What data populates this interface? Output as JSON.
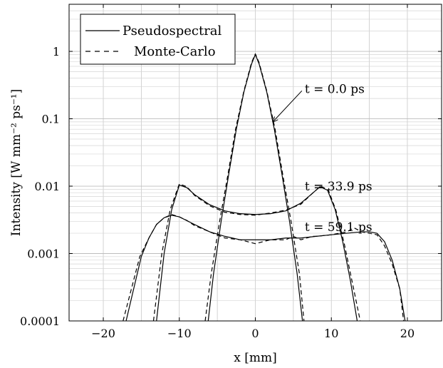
{
  "chart_data": {
    "type": "line",
    "title": "",
    "xlabel": "x [mm]",
    "ylabel": "Intensity [W mm⁻² ps⁻¹]",
    "xlim": [
      -24.5,
      24.5
    ],
    "ylim": [
      0.0001,
      5
    ],
    "yscale": "log",
    "grid": true,
    "legend_position": "top-left",
    "x_tick_labels": [
      "−20",
      "−10",
      "0",
      "10",
      "20"
    ],
    "x_ticks": [
      -20,
      -10,
      0,
      10,
      20
    ],
    "y_tick_labels": [
      "1",
      "0.1",
      "0.01",
      "0.001",
      "0.0001"
    ],
    "y_ticks": [
      1,
      0.1,
      0.01,
      0.001,
      0.0001
    ],
    "legend": [
      {
        "label": "Pseudospectral",
        "style": "solid"
      },
      {
        "label": "Monte-Carlo",
        "style": "dashed"
      }
    ],
    "annotations": [
      {
        "label": "t = 0.0 ps",
        "x": 6.5,
        "y": 0.28,
        "arrow_to": {
          "x": 2.3,
          "y": 0.09
        }
      },
      {
        "label": "t = 33.9 ps",
        "x": 6.5,
        "y": 0.01
      },
      {
        "label": "t = 59.1 ps",
        "x": 6.5,
        "y": 0.0025
      }
    ],
    "series": [
      {
        "group": "t = 0.0 ps",
        "method": "Pseudospectral",
        "style": "solid",
        "x": [
          -6.2,
          -5.5,
          -4.5,
          -3.5,
          -2.5,
          -1.5,
          -0.5,
          0,
          0.5,
          1.5,
          2.5,
          3.5,
          4.5,
          5.5,
          6.2
        ],
        "y": [
          0.0001,
          0.0005,
          0.003,
          0.015,
          0.07,
          0.25,
          0.65,
          0.9,
          0.65,
          0.25,
          0.07,
          0.015,
          0.003,
          0.0005,
          0.0001
        ]
      },
      {
        "group": "t = 0.0 ps",
        "method": "Monte-Carlo",
        "style": "dashed",
        "x": [
          -6.6,
          -5.8,
          -4.7,
          -3.6,
          -2.6,
          -1.5,
          -0.5,
          0,
          0.5,
          1.5,
          2.6,
          3.6,
          4.7,
          5.8,
          6.4
        ],
        "y": [
          0.0001,
          0.0005,
          0.003,
          0.015,
          0.07,
          0.26,
          0.68,
          0.92,
          0.68,
          0.26,
          0.07,
          0.015,
          0.003,
          0.0005,
          0.0001
        ]
      },
      {
        "group": "t = 33.9 ps",
        "method": "Pseudospectral",
        "style": "solid",
        "x": [
          -13.0,
          -12.0,
          -11.0,
          -10.0,
          -9.0,
          -8.0,
          -6.0,
          -4.0,
          -2.0,
          0,
          2.0,
          4.0,
          6.0,
          7.5,
          8.5,
          9.5,
          10.5,
          11.5,
          12.5,
          13.4
        ],
        "y": [
          0.0001,
          0.001,
          0.0045,
          0.0104,
          0.0095,
          0.0075,
          0.0053,
          0.0043,
          0.0039,
          0.0038,
          0.0039,
          0.0043,
          0.0056,
          0.0078,
          0.0098,
          0.0087,
          0.0045,
          0.0015,
          0.0004,
          0.0001
        ]
      },
      {
        "group": "t = 33.9 ps",
        "method": "Monte-Carlo",
        "style": "dashed",
        "x": [
          -13.4,
          -12.3,
          -11.2,
          -10.0,
          -9.0,
          -8.0,
          -6.0,
          -4.0,
          -2.0,
          0,
          2.0,
          4.0,
          6.0,
          7.5,
          8.6,
          9.6,
          10.6,
          11.7,
          12.7,
          13.8
        ],
        "y": [
          0.0001,
          0.001,
          0.0045,
          0.0108,
          0.0098,
          0.0073,
          0.0051,
          0.0041,
          0.0038,
          0.0037,
          0.004,
          0.0044,
          0.0054,
          0.0078,
          0.01,
          0.0088,
          0.0044,
          0.0014,
          0.0004,
          0.0001
        ]
      },
      {
        "group": "t = 59.1 ps",
        "method": "Pseudospectral",
        "style": "solid",
        "x": [
          -17.0,
          -16.0,
          -15.0,
          -14.0,
          -13.0,
          -12.0,
          -11.0,
          -10.0,
          -8.0,
          -6.0,
          -4.0,
          -2.0,
          0,
          2.0,
          4.0,
          6.0,
          8.0,
          10.0,
          12.0,
          14.0,
          15.0,
          16.0,
          17.0,
          18.0,
          19.0,
          19.7
        ],
        "y": [
          0.0001,
          0.0003,
          0.0009,
          0.0017,
          0.0027,
          0.0034,
          0.0037,
          0.0035,
          0.0027,
          0.0021,
          0.0018,
          0.0016,
          0.0016,
          0.0016,
          0.0017,
          0.0017,
          0.0018,
          0.0019,
          0.002,
          0.0021,
          0.0021,
          0.002,
          0.0015,
          0.0008,
          0.0003,
          0.0001
        ]
      },
      {
        "group": "t = 59.1 ps",
        "method": "Monte-Carlo",
        "style": "dashed",
        "x": [
          -17.4,
          -16.3,
          -15.2,
          -14.0,
          -13.0,
          -12.0,
          -11.0,
          -10.0,
          -9.0,
          -8.0,
          -6.0,
          -4.0,
          -2.0,
          -1.0,
          0,
          1.0,
          2.0,
          4.0,
          5.0,
          6.0,
          7.5,
          8.0,
          10.0,
          12.0,
          13.0,
          14.0,
          15.0,
          16.0,
          17.0,
          18.0,
          19.0,
          19.5
        ],
        "y": [
          0.0001,
          0.0003,
          0.0009,
          0.0017,
          0.0027,
          0.0034,
          0.0038,
          0.0035,
          0.0031,
          0.0026,
          0.0021,
          0.0017,
          0.0016,
          0.0015,
          0.0014,
          0.0015,
          0.0016,
          0.0016,
          0.0018,
          0.0016,
          0.0018,
          0.0018,
          0.0019,
          0.0021,
          0.0024,
          0.0021,
          0.002,
          0.0019,
          0.0013,
          0.0007,
          0.0003,
          0.0001
        ]
      }
    ]
  }
}
